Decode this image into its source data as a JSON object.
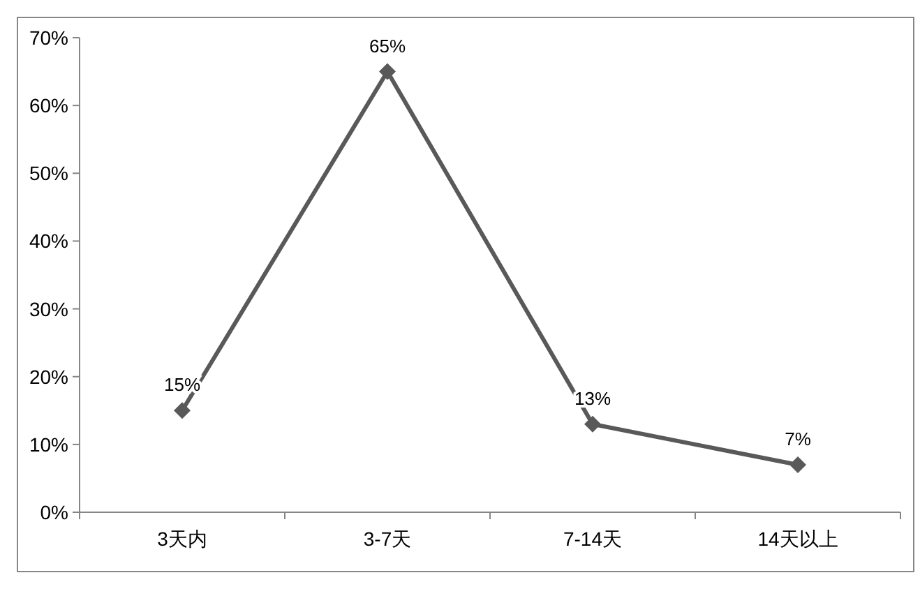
{
  "chart_data": {
    "type": "line",
    "categories": [
      "3天内",
      "3-7天",
      "7-14天",
      "14天以上"
    ],
    "series": [
      {
        "color": "#595959",
        "values": [
          15,
          65,
          13,
          7
        ],
        "value_labels": [
          "15%",
          "65%",
          "13%",
          "7%"
        ]
      }
    ],
    "ylim": [
      0,
      70
    ],
    "yticks": [
      {
        "value": 0,
        "label": "0%"
      },
      {
        "value": 10,
        "label": "10%"
      },
      {
        "value": 20,
        "label": "20%"
      },
      {
        "value": 30,
        "label": "30%"
      },
      {
        "value": 40,
        "label": "40%"
      },
      {
        "value": 50,
        "label": "50%"
      },
      {
        "value": 60,
        "label": "60%"
      },
      {
        "value": 70,
        "label": "70%"
      }
    ],
    "marker": "diamond",
    "line_style": "solid",
    "grid": false
  }
}
